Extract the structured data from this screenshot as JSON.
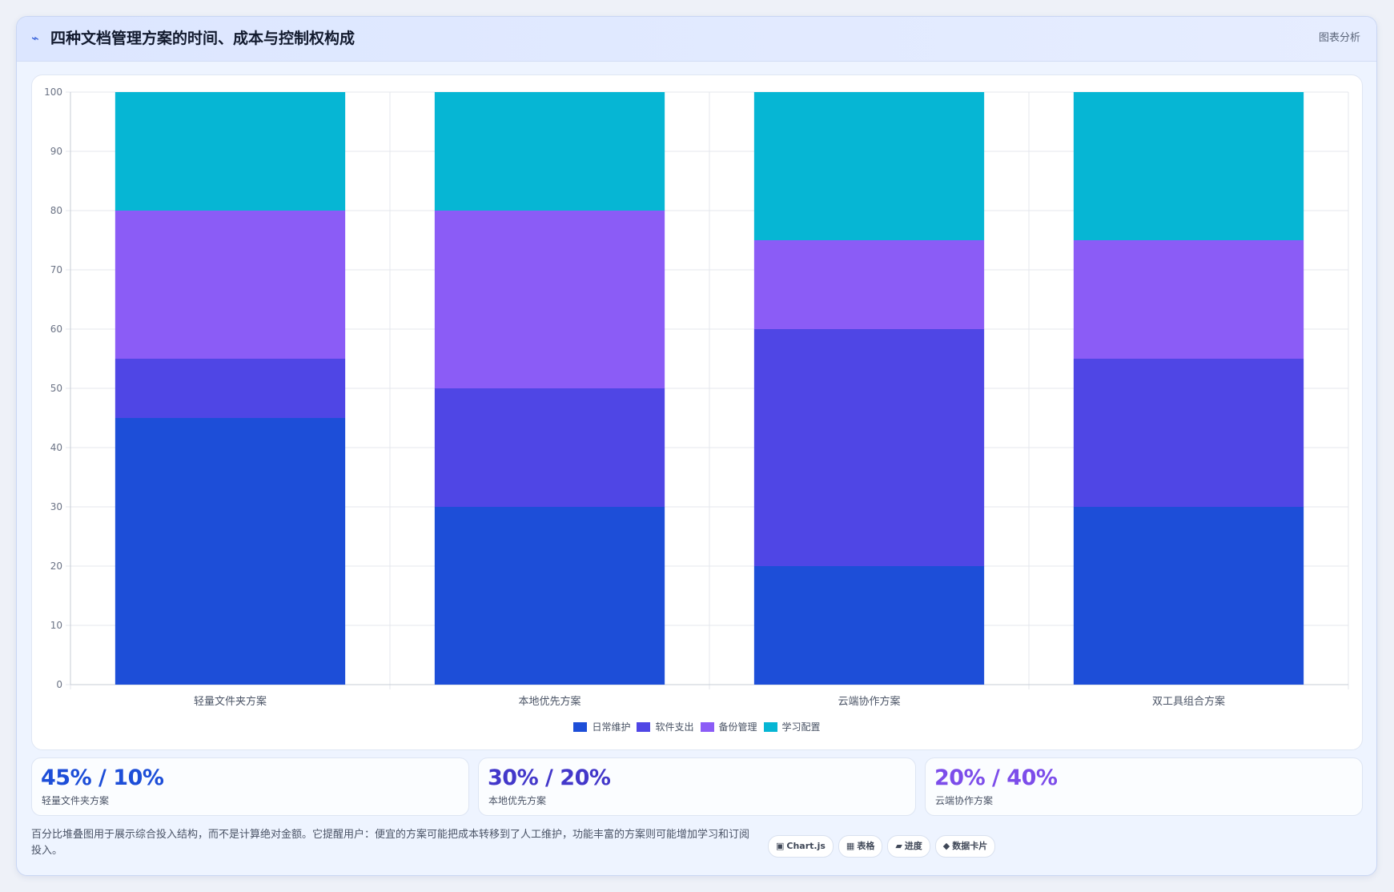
{
  "header": {
    "icon": "lightning-icon",
    "title": "四种文档管理方案的时间、成本与控制权构成",
    "action_label": "图表分析"
  },
  "chart_data": {
    "type": "bar",
    "stacked": true,
    "categories": [
      "轻量文件夹方案",
      "本地优先方案",
      "云端协作方案",
      "双工具组合方案"
    ],
    "series": [
      {
        "name": "日常维护",
        "values": [
          45,
          30,
          20,
          30
        ],
        "color": "#1d4ed8"
      },
      {
        "name": "软件支出",
        "values": [
          10,
          20,
          40,
          25
        ],
        "color": "#4f46e5"
      },
      {
        "name": "备份管理",
        "values": [
          25,
          30,
          15,
          20
        ],
        "color": "#8b5cf6"
      },
      {
        "name": "学习配置",
        "values": [
          20,
          20,
          25,
          25
        ],
        "color": "#06b6d4"
      }
    ],
    "ylim": [
      0,
      100
    ],
    "yticks": [
      "0",
      "10",
      "20",
      "30",
      "40",
      "50",
      "60",
      "70",
      "80",
      "90",
      "100"
    ],
    "grid": true,
    "legend_position": "bottom"
  },
  "stats": [
    {
      "value": "45% / 10%",
      "label": "轻量文件夹方案",
      "color": "#1d4ed8"
    },
    {
      "value": "30% / 20%",
      "label": "本地优先方案",
      "color": "#4338ca"
    },
    {
      "value": "20% / 40%",
      "label": "云端协作方案",
      "color": "#7c4dea"
    }
  ],
  "footer": {
    "note": "百分比堆叠图用于展示综合投入结构，而不是计算绝对金额。它提醒用户：便宜的方案可能把成本转移到了人工维护，功能丰富的方案则可能增加学习和订阅投入。",
    "chips": [
      {
        "icon": "▣",
        "icon_name": "chart-icon",
        "label": "Chart.js"
      },
      {
        "icon": "▦",
        "icon_name": "table-icon",
        "label": "表格"
      },
      {
        "icon": "▰",
        "icon_name": "progress-icon",
        "label": "进度"
      },
      {
        "icon": "◆",
        "icon_name": "card-icon",
        "label": "数据卡片"
      }
    ]
  }
}
